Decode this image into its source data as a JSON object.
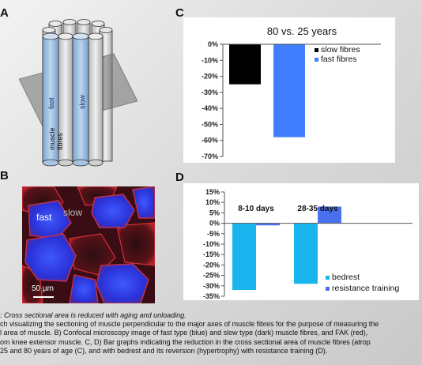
{
  "panels": {
    "a": "A",
    "b": "B",
    "c": "C",
    "d": "D"
  },
  "panel_a": {
    "fast_label": "fast",
    "slow_label": "slow",
    "muscle_label": "muscle",
    "fibres_label": "fibres"
  },
  "panel_b": {
    "fast_label": "fast",
    "slow_label": "slow",
    "scale_label": "50 µm"
  },
  "chart_data": [
    {
      "type": "bar",
      "panel": "C",
      "title": "80 vs. 25 years",
      "categories": [
        ""
      ],
      "series": [
        {
          "name": "slow fibres",
          "values": [
            -25
          ],
          "color": "#000000"
        },
        {
          "name": "fast fibres",
          "values": [
            -58
          ],
          "color": "#3f7fff"
        }
      ],
      "ylim": [
        -70,
        0
      ],
      "yticks": [
        "0%",
        "-10%",
        "-20%",
        "-30%",
        "-40%",
        "-50%",
        "-60%",
        "-70%"
      ],
      "legend": "top-right",
      "grid": false
    },
    {
      "type": "bar",
      "panel": "D",
      "categories": [
        "8-10 days",
        "28-35 days"
      ],
      "series": [
        {
          "name": "bedrest",
          "values": [
            -32,
            -29
          ],
          "color": "#1ab5ee"
        },
        {
          "name": "resistance training",
          "values": [
            -1,
            8
          ],
          "color": "#4a70ee"
        }
      ],
      "ylim": [
        -35,
        15
      ],
      "yticks": [
        "15%",
        "10%",
        "5%",
        "0%",
        "-5%",
        "-10%",
        "-15%",
        "-20%",
        "-25%",
        "-30%",
        "-35%"
      ],
      "legend": "bottom-right",
      "grid": false
    }
  ],
  "caption": {
    "line1": ": Cross sectional area is reduced with  aging and unloading.",
    "line2": "ch visualizing the sectioning of muscle perpendicular to the major axes of muscle fibres for the purpose of measuring the",
    "line3": "l area of muscle. B) Confocal microscopy image of fast type (blue) and slow type (dark) muscle fibres, and FAK (red),",
    "line4": "om knee extensor muscle. C, D) Bar graphs indicating the reduction in the cross sectional area of muscle fibres (atrop",
    "line5": "25 and 80 years of age (C), and with bedrest and its reversion (hypertrophy)  with resistance training (D)."
  }
}
